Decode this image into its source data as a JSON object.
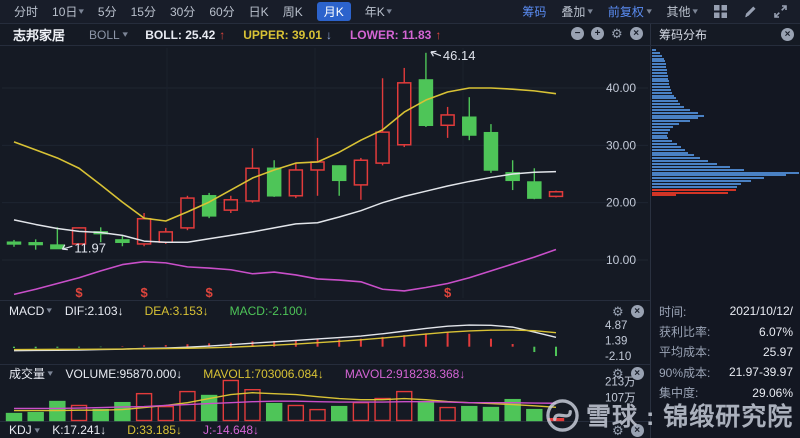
{
  "toolbar": {
    "periods": [
      {
        "label": "分时",
        "caret": false,
        "active": false
      },
      {
        "label": "10日",
        "caret": true,
        "active": false
      },
      {
        "label": "5分",
        "caret": false,
        "active": false
      },
      {
        "label": "15分",
        "caret": false,
        "active": false
      },
      {
        "label": "30分",
        "caret": false,
        "active": false
      },
      {
        "label": "60分",
        "caret": false,
        "active": false
      },
      {
        "label": "日K",
        "caret": false,
        "active": false
      },
      {
        "label": "周K",
        "caret": false,
        "active": false
      },
      {
        "label": "月K",
        "caret": false,
        "active": true
      },
      {
        "label": "年K",
        "caret": true,
        "active": false
      }
    ],
    "tools": [
      {
        "label": "筹码",
        "caret": false,
        "accent": true
      },
      {
        "label": "叠加",
        "caret": true,
        "accent": false
      },
      {
        "label": "前复权",
        "caret": true,
        "accent": true
      },
      {
        "label": "其他",
        "caret": true,
        "accent": false
      }
    ]
  },
  "subheader": {
    "stock_name": "志邦家居",
    "indicator_selector": "BOLL",
    "metrics": [
      {
        "text": "BOLL: 25.42",
        "color": "#e8ebf2",
        "arrow": "↑",
        "arrow_color": "#e0453c"
      },
      {
        "text": "UPPER: 39.01",
        "color": "#d8c235",
        "arrow": "↓",
        "arrow_color": "#8fa8d8"
      },
      {
        "text": "LOWER: 11.83",
        "color": "#d465d4",
        "arrow": "↑",
        "arrow_color": "#e0453c"
      }
    ]
  },
  "panels": {
    "macd": {
      "name": "MACD",
      "items": [
        {
          "text": "DIF:2.103↓",
          "color": "#e8ebf2"
        },
        {
          "text": "DEA:3.153↓",
          "color": "#d8c235"
        },
        {
          "text": "MACD:-2.100↓",
          "color": "#4ec558"
        }
      ]
    },
    "volume": {
      "name": "成交量",
      "items": [
        {
          "text": "VOLUME:95870.000↓",
          "color": "#e8ebf2"
        },
        {
          "text": "MAVOL1:703006.084↓",
          "color": "#d8c235"
        },
        {
          "text": "MAVOL2:918238.368↓",
          "color": "#d465d4"
        }
      ]
    },
    "kdj": {
      "name": "KDJ",
      "items": [
        {
          "text": "K:17.241↓",
          "color": "#e8ebf2"
        },
        {
          "text": "D:33.185↓",
          "color": "#d8c235"
        },
        {
          "text": "J:-14.648↓",
          "color": "#d465d4"
        }
      ]
    }
  },
  "chip_panel": {
    "title": "筹码分布",
    "info": [
      {
        "label": "时间:",
        "value": "2021/10/12/"
      },
      {
        "label": "获利比率:",
        "value": "6.07%"
      },
      {
        "label": "平均成本:",
        "value": "25.97"
      },
      {
        "label": "90%成本:",
        "value": "21.97-39.97"
      },
      {
        "label": "集中度:",
        "value": "29.06%"
      }
    ]
  },
  "watermark": {
    "text": "雪球 : 锦缎研究院"
  },
  "colors": {
    "up": "#e23b3b",
    "down": "#4ec558",
    "boll_upper": "#d8c235",
    "boll_mid": "#e2e5ea",
    "boll_lower": "#c94fc9",
    "accent_blue": "#5a8cf2",
    "chip_blue": "#4a81c4",
    "chip_red": "#d23526",
    "bg": "#151a24",
    "axis_text": "#c3cad8",
    "grid": "#1e2531",
    "divider": "#262d3c",
    "dividend": "#e0453c"
  },
  "chart_data": {
    "type": "candlestick",
    "stock": "志邦家居",
    "period": "月K",
    "y_axis": {
      "ticks": [
        40,
        30,
        20,
        10
      ],
      "labels": [
        "40.00",
        "30.00",
        "20.00",
        "10.00"
      ]
    },
    "candles": [
      {
        "o": 13.1,
        "h": 13.5,
        "l": 12.3,
        "c": 12.8
      },
      {
        "o": 13.0,
        "h": 13.6,
        "l": 11.8,
        "c": 12.7
      },
      {
        "o": 12.6,
        "h": 15.7,
        "l": 11.97,
        "c": 12.0
      },
      {
        "o": 12.8,
        "h": 15.7,
        "l": 12.6,
        "c": 15.6
      },
      {
        "o": 14.9,
        "h": 15.7,
        "l": 13.1,
        "c": 14.6
      },
      {
        "o": 13.5,
        "h": 14.2,
        "l": 12.4,
        "c": 13.1
      },
      {
        "o": 12.8,
        "h": 18.2,
        "l": 12.4,
        "c": 17.2
      },
      {
        "o": 13.1,
        "h": 15.6,
        "l": 12.8,
        "c": 14.9
      },
      {
        "o": 15.6,
        "h": 21.2,
        "l": 15.2,
        "c": 20.8
      },
      {
        "o": 21.2,
        "h": 21.7,
        "l": 17.3,
        "c": 17.7
      },
      {
        "o": 18.7,
        "h": 21.2,
        "l": 18.2,
        "c": 20.5
      },
      {
        "o": 20.3,
        "h": 29.5,
        "l": 20.0,
        "c": 26.0
      },
      {
        "o": 26.0,
        "h": 27.4,
        "l": 21.0,
        "c": 21.2
      },
      {
        "o": 21.2,
        "h": 27.0,
        "l": 20.8,
        "c": 25.7
      },
      {
        "o": 25.7,
        "h": 31.3,
        "l": 21.2,
        "c": 27.1
      },
      {
        "o": 26.4,
        "h": 26.5,
        "l": 21.2,
        "c": 23.9
      },
      {
        "o": 23.1,
        "h": 27.8,
        "l": 20.5,
        "c": 27.4
      },
      {
        "o": 26.9,
        "h": 41.7,
        "l": 26.5,
        "c": 32.3
      },
      {
        "o": 30.1,
        "h": 43.5,
        "l": 29.7,
        "c": 40.9
      },
      {
        "o": 41.4,
        "h": 46.14,
        "l": 33.2,
        "c": 33.5
      },
      {
        "o": 33.5,
        "h": 36.7,
        "l": 31.3,
        "c": 35.3
      },
      {
        "o": 34.9,
        "h": 38.4,
        "l": 30.9,
        "c": 31.8
      },
      {
        "o": 32.2,
        "h": 33.7,
        "l": 25.2,
        "c": 25.7
      },
      {
        "o": 25.2,
        "h": 27.4,
        "l": 22.2,
        "c": 23.9
      },
      {
        "o": 23.6,
        "h": 26.0,
        "l": 20.6,
        "c": 20.8
      },
      {
        "o": 21.1,
        "h": 22.1,
        "l": 20.9,
        "c": 21.9
      }
    ],
    "boll": {
      "upper": [
        30.6,
        29.2,
        27.8,
        26.0,
        23.1,
        20.1,
        17.3,
        16.8,
        18.4,
        20.1,
        22.2,
        24.3,
        25.7,
        26.9,
        27.1,
        28.8,
        30.9,
        32.7,
        35.8,
        37.9,
        39.3,
        40.0,
        40.0,
        39.8,
        39.5,
        39.01
      ],
      "mid": [
        17.0,
        16.2,
        15.5,
        15.0,
        14.8,
        14.3,
        13.3,
        13.1,
        13.1,
        13.7,
        14.3,
        14.9,
        15.6,
        16.3,
        16.5,
        17.5,
        18.6,
        20.0,
        21.1,
        22.0,
        22.9,
        23.7,
        24.4,
        25.0,
        25.3,
        25.42
      ],
      "lower": [
        4.0,
        4.9,
        5.9,
        6.9,
        8.1,
        9.2,
        9.7,
        9.5,
        8.8,
        8.6,
        8.3,
        7.6,
        7.9,
        7.4,
        6.7,
        6.5,
        6.2,
        4.9,
        4.6,
        5.2,
        5.9,
        6.9,
        8.1,
        9.3,
        10.5,
        11.83
      ]
    },
    "annotations": [
      {
        "text": "46.14",
        "candle_index": 19,
        "at": "high"
      },
      {
        "text": "11.97",
        "candle_index": 2,
        "at": "low"
      }
    ],
    "dividend_marks": {
      "symbol": "$",
      "indices": [
        3,
        6,
        9,
        20
      ]
    },
    "macd": {
      "hist": [
        -0.3,
        -0.35,
        -0.25,
        -0.2,
        -0.1,
        0.1,
        0.3,
        0.35,
        0.55,
        0.75,
        0.9,
        1.2,
        1.3,
        1.5,
        1.7,
        1.6,
        1.8,
        2.2,
        2.6,
        3.0,
        3.2,
        2.9,
        1.8,
        0.6,
        -1.2,
        -2.1
      ],
      "dif": [
        -0.9,
        -0.85,
        -0.8,
        -0.75,
        -0.65,
        -0.55,
        -0.4,
        -0.3,
        -0.1,
        0.15,
        0.45,
        0.8,
        1.1,
        1.4,
        1.75,
        2.05,
        2.4,
        2.9,
        3.5,
        4.1,
        4.6,
        4.87,
        4.8,
        4.4,
        3.3,
        2.103
      ],
      "dea": [
        -0.65,
        -0.62,
        -0.6,
        -0.58,
        -0.55,
        -0.52,
        -0.48,
        -0.42,
        -0.35,
        -0.25,
        -0.1,
        0.1,
        0.35,
        0.6,
        0.9,
        1.2,
        1.55,
        1.95,
        2.4,
        2.85,
        3.25,
        3.55,
        3.7,
        3.75,
        3.6,
        3.153
      ],
      "axis_values": [
        4.87,
        1.39,
        -2.1
      ],
      "axis_labels": [
        "4.87",
        "1.39",
        "-2.10"
      ]
    },
    "volume": {
      "values_wan": [
        37,
        42,
        101,
        80,
        58,
        95,
        143,
        74,
        154,
        133,
        213,
        164,
        90,
        80,
        58,
        74,
        95,
        117,
        154,
        101,
        69,
        74,
        69,
        111,
        58,
        9.587
      ],
      "mavol1_wan": [
        53,
        53,
        53,
        55,
        55,
        58,
        69,
        80,
        95,
        117,
        138,
        148,
        143,
        138,
        127,
        117,
        111,
        111,
        117,
        111,
        101,
        95,
        90,
        85,
        78,
        70.3
      ],
      "mavol2_wan": [
        64,
        64,
        64,
        66,
        69,
        72,
        74,
        80,
        85,
        90,
        95,
        100,
        103,
        103,
        100,
        98,
        98,
        98,
        100,
        100,
        98,
        95,
        95,
        95,
        93,
        91.8
      ],
      "axis_values": [
        213,
        107
      ],
      "axis_labels": [
        "213万",
        "107万"
      ],
      "last_bar_solid": true
    },
    "chip_distribution": {
      "widths": [
        4,
        8,
        10,
        12,
        13,
        14,
        14,
        15,
        15,
        16,
        16,
        17,
        17,
        18,
        19,
        20,
        22,
        24,
        26,
        28,
        32,
        38,
        46,
        52,
        46,
        38,
        27,
        21,
        18,
        16,
        15,
        16,
        20,
        25,
        29,
        33,
        36,
        42,
        48,
        56,
        65,
        78,
        92,
        147,
        134,
        112,
        99,
        89,
        85,
        84,
        76,
        24
      ],
      "red_tail_rows": 3
    }
  }
}
